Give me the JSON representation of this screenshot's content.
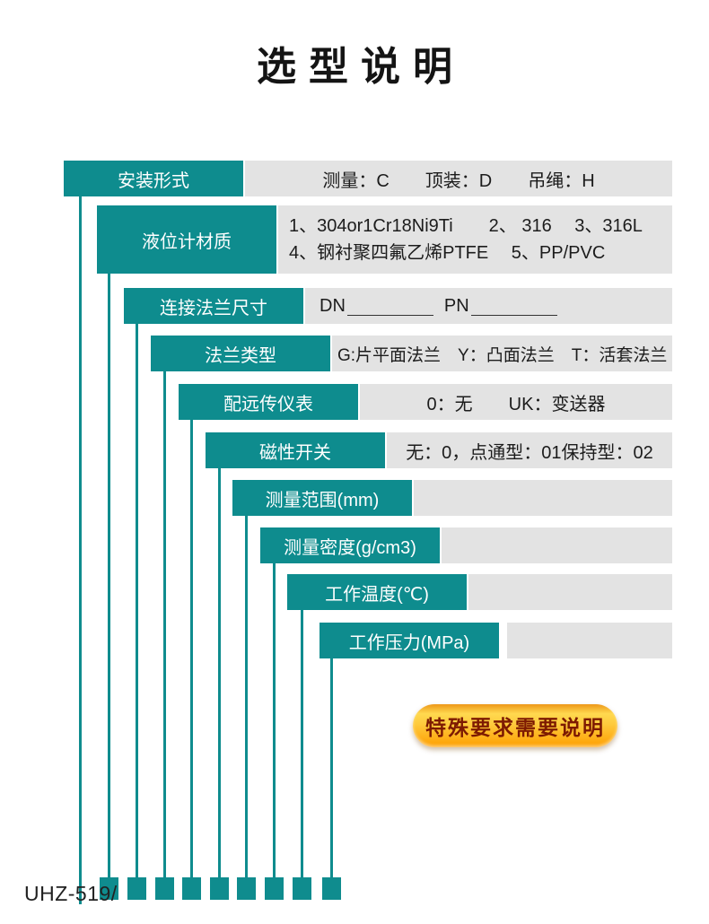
{
  "page": {
    "title": "选型说明",
    "model_prefix": "UHZ-519/"
  },
  "colors": {
    "teal": "#0E8C8E",
    "panel_gray": "#E3E3E3",
    "button_gradient_top": "#ED9718",
    "button_gradient_mid": "#FFD94F",
    "button_gradient_bottom": "#FE9E00",
    "button_text": "#7D1A02"
  },
  "rows": [
    {
      "label": "安装形式",
      "desc": "测量：C　　顶装：D　　吊绳：H"
    },
    {
      "label": "液位计材质",
      "desc_line1": "1、304or1Cr18Ni9Ti　　2、 316　 3、316L",
      "desc_line2": "4、钢衬聚四氟乙烯PTFE　 5、PP/PVC"
    },
    {
      "label": "连接法兰尺寸",
      "dn_label": "DN",
      "pn_label": "PN"
    },
    {
      "label": "法兰类型",
      "desc": "G:片平面法兰　Y：凸面法兰　T：活套法兰"
    },
    {
      "label": "配远传仪表",
      "desc": "0：无　　UK：变送器"
    },
    {
      "label": "磁性开关",
      "desc": "无：0，点通型：01保持型：02"
    },
    {
      "label": "测量范围(mm)",
      "desc": ""
    },
    {
      "label": "测量密度(g/cm3)",
      "desc": ""
    },
    {
      "label": "工作温度(℃)",
      "desc": ""
    },
    {
      "label": "工作压力(MPa)",
      "desc": ""
    }
  ],
  "special_note_button": {
    "label": "特殊要求需要说明"
  }
}
